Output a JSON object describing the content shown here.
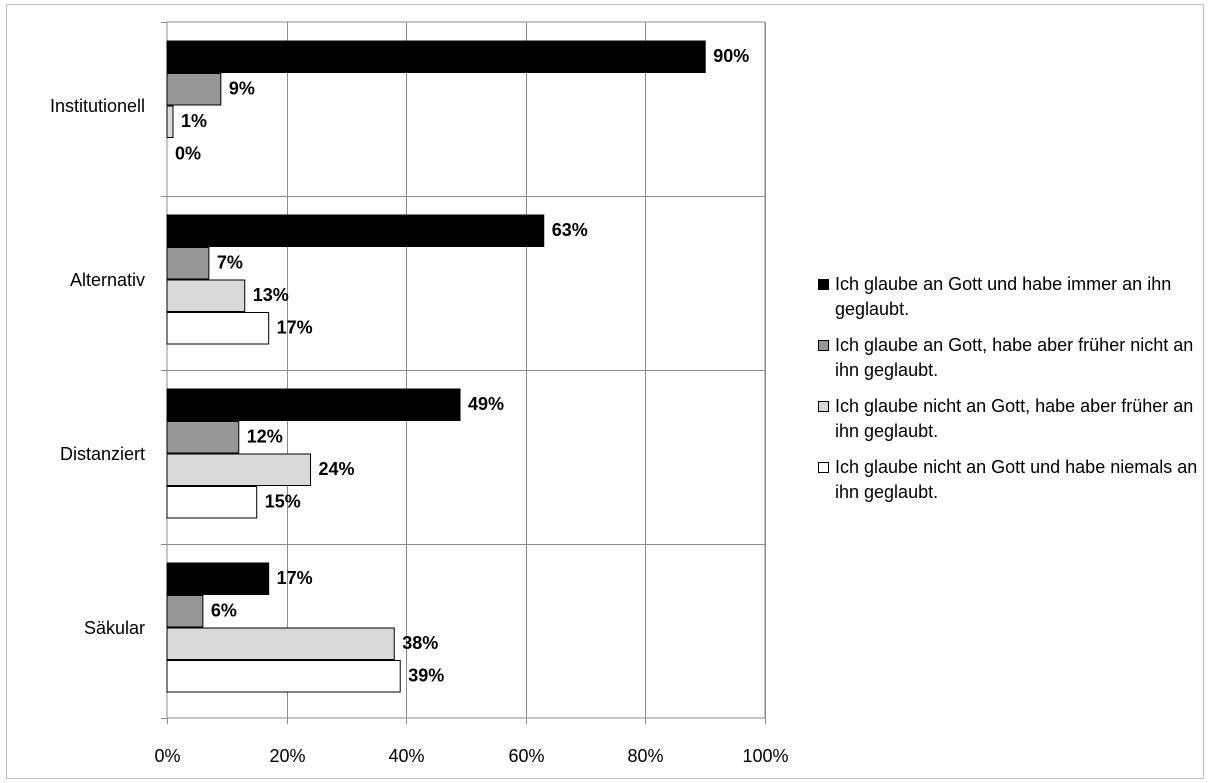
{
  "chart_data": {
    "type": "bar",
    "orientation": "horizontal",
    "categories": [
      "Institutionell",
      "Alternativ",
      "Distanziert",
      "Säkular"
    ],
    "series": [
      {
        "name": "Ich glaube an Gott und habe immer an ihn geglaubt.",
        "color": "#000000",
        "values": [
          90,
          63,
          49,
          17
        ]
      },
      {
        "name": "Ich glaube an Gott, habe aber früher nicht an ihn geglaubt.",
        "color": "#969696",
        "values": [
          9,
          7,
          12,
          6
        ]
      },
      {
        "name": "Ich glaube nicht an Gott, habe aber früher an ihn geglaubt.",
        "color": "#d9d9d9",
        "values": [
          1,
          13,
          24,
          38
        ]
      },
      {
        "name": "Ich glaube nicht an Gott und habe niemals an ihn geglaubt.",
        "color": "#ffffff",
        "values": [
          0,
          17,
          15,
          39
        ]
      }
    ],
    "data_labels": [
      [
        "90%",
        "9%",
        "1%",
        "0%"
      ],
      [
        "63%",
        "7%",
        "13%",
        "17%"
      ],
      [
        "49%",
        "12%",
        "24%",
        "15%"
      ],
      [
        "17%",
        "6%",
        "38%",
        "39%"
      ]
    ],
    "x_ticks": [
      0,
      20,
      40,
      60,
      80,
      100
    ],
    "x_tick_labels": [
      "0%",
      "20%",
      "40%",
      "60%",
      "80%",
      "100%"
    ],
    "xlim": [
      0,
      100
    ],
    "grid": true,
    "legend_position": "right",
    "title": "",
    "xlabel": "",
    "ylabel": ""
  }
}
